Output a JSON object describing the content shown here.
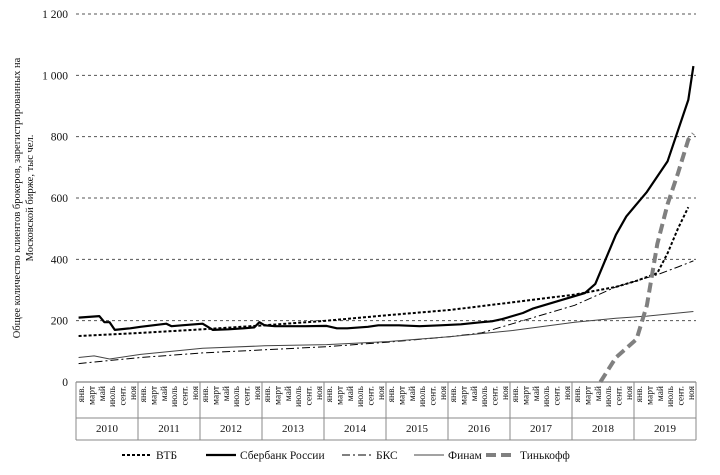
{
  "chart_data": {
    "type": "line",
    "title": "",
    "ylabel": "Общее количество клиентов брокеров, зарегистрированных на Московской бирже, тыс чел.",
    "xlabel": "",
    "ylim": [
      0,
      1200
    ],
    "yticks": [
      "0",
      "200",
      "400",
      "600",
      "800",
      "1 000",
      "1 200"
    ],
    "grid": "horizontal dashed",
    "legend_position": "bottom",
    "years": [
      "2010",
      "2011",
      "2012",
      "2013",
      "2014",
      "2015",
      "2016",
      "2017",
      "2018",
      "2019"
    ],
    "months": [
      "янв.",
      "март",
      "май",
      "июль",
      "сент.",
      "ноя"
    ],
    "series": [
      {
        "name": "ВТБ",
        "style": "dotted",
        "color": "#000000",
        "points": [
          [
            0,
            150
          ],
          [
            12,
            160
          ],
          [
            24,
            172
          ],
          [
            36,
            185
          ],
          [
            48,
            200
          ],
          [
            60,
            218
          ],
          [
            72,
            235
          ],
          [
            84,
            260
          ],
          [
            96,
            285
          ],
          [
            104,
            310
          ],
          [
            108,
            330
          ],
          [
            112,
            355
          ],
          [
            114,
            420
          ],
          [
            116,
            500
          ],
          [
            118,
            570
          ]
        ]
      },
      {
        "name": "Сбербанк России",
        "style": "solid",
        "color": "#000000",
        "points": [
          [
            0,
            210
          ],
          [
            4,
            215
          ],
          [
            5,
            195
          ],
          [
            6,
            195
          ],
          [
            7,
            170
          ],
          [
            10,
            175
          ],
          [
            12,
            180
          ],
          [
            17,
            190
          ],
          [
            18,
            182
          ],
          [
            20,
            185
          ],
          [
            24,
            190
          ],
          [
            25,
            180
          ],
          [
            26,
            170
          ],
          [
            29,
            172
          ],
          [
            32,
            175
          ],
          [
            34,
            178
          ],
          [
            35,
            195
          ],
          [
            36,
            185
          ],
          [
            38,
            182
          ],
          [
            44,
            182
          ],
          [
            48,
            183
          ],
          [
            50,
            175
          ],
          [
            52,
            175
          ],
          [
            56,
            180
          ],
          [
            58,
            185
          ],
          [
            62,
            185
          ],
          [
            66,
            182
          ],
          [
            70,
            185
          ],
          [
            74,
            188
          ],
          [
            78,
            195
          ],
          [
            80,
            198
          ],
          [
            82,
            205
          ],
          [
            86,
            225
          ],
          [
            88,
            240
          ],
          [
            94,
            270
          ],
          [
            98,
            290
          ],
          [
            100,
            320
          ],
          [
            102,
            400
          ],
          [
            104,
            480
          ],
          [
            106,
            540
          ],
          [
            110,
            620
          ],
          [
            114,
            720
          ],
          [
            118,
            920
          ],
          [
            119,
            1030
          ]
        ]
      },
      {
        "name": "БКС",
        "style": "dashdot",
        "color": "#000000",
        "points": [
          [
            0,
            60
          ],
          [
            6,
            70
          ],
          [
            12,
            80
          ],
          [
            24,
            95
          ],
          [
            36,
            105
          ],
          [
            48,
            115
          ],
          [
            60,
            130
          ],
          [
            72,
            148
          ],
          [
            78,
            160
          ],
          [
            84,
            190
          ],
          [
            96,
            250
          ],
          [
            104,
            310
          ],
          [
            108,
            330
          ],
          [
            112,
            350
          ],
          [
            116,
            375
          ],
          [
            119,
            395
          ]
        ]
      },
      {
        "name": "Финам",
        "style": "solid-thin",
        "color": "#333333",
        "points": [
          [
            0,
            80
          ],
          [
            3,
            85
          ],
          [
            6,
            75
          ],
          [
            12,
            90
          ],
          [
            24,
            110
          ],
          [
            36,
            118
          ],
          [
            48,
            122
          ],
          [
            60,
            132
          ],
          [
            72,
            148
          ],
          [
            84,
            168
          ],
          [
            96,
            195
          ],
          [
            104,
            208
          ],
          [
            110,
            215
          ],
          [
            119,
            230
          ]
        ]
      },
      {
        "name": "Тинькофф",
        "style": "thick-dashed",
        "color": "#808080",
        "points": [
          [
            101,
            0
          ],
          [
            104,
            80
          ],
          [
            106,
            110
          ],
          [
            108,
            140
          ],
          [
            110,
            250
          ],
          [
            112,
            450
          ],
          [
            114,
            580
          ],
          [
            116,
            680
          ],
          [
            118,
            790
          ],
          [
            119,
            810
          ]
        ]
      }
    ]
  }
}
